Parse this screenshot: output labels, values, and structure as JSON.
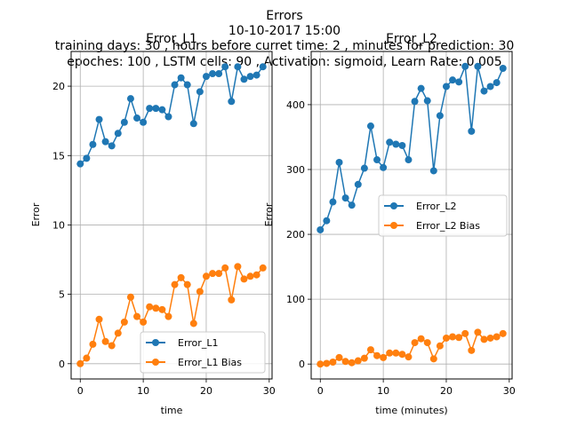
{
  "suptitle_lines": [
    "Errors",
    "10-10-2017 15:00",
    "training days: 30 , hours before curret time: 2 , minutes for prediction: 30",
    "epoches: 100 , LSTM cells: 90 , Activation: sigmoid, Learn Rate: 0.005"
  ],
  "chart_data": [
    {
      "type": "line",
      "title": "Error_L1",
      "xlabel": "time",
      "ylabel": "Error",
      "xlim": [
        -1.45,
        30.45
      ],
      "ylim": [
        -1.1,
        22.5
      ],
      "xticks": [
        0,
        10,
        20,
        30
      ],
      "yticks": [
        0,
        5,
        10,
        15,
        20
      ],
      "grid": true,
      "legend_position": "lower-right",
      "x": [
        0,
        1,
        2,
        3,
        4,
        5,
        6,
        7,
        8,
        9,
        10,
        11,
        12,
        13,
        14,
        15,
        16,
        17,
        18,
        19,
        20,
        21,
        22,
        23,
        24,
        25,
        26,
        27,
        28,
        29
      ],
      "series": [
        {
          "name": "Error_L1",
          "color": "#1f77b4",
          "values": [
            14.4,
            14.8,
            15.8,
            17.6,
            16.0,
            15.7,
            16.6,
            17.4,
            19.1,
            17.7,
            17.4,
            18.4,
            18.4,
            18.3,
            17.8,
            20.1,
            20.6,
            20.1,
            17.3,
            19.6,
            20.7,
            20.9,
            20.9,
            21.4,
            18.9,
            21.4,
            20.5,
            20.7,
            20.8,
            21.4
          ]
        },
        {
          "name": "Error_L1 Bias",
          "color": "#ff7f0e",
          "values": [
            0.0,
            0.4,
            1.4,
            3.2,
            1.6,
            1.3,
            2.2,
            3.0,
            4.8,
            3.4,
            3.0,
            4.1,
            4.0,
            3.9,
            3.4,
            5.7,
            6.2,
            5.7,
            2.9,
            5.2,
            6.3,
            6.5,
            6.5,
            6.9,
            4.6,
            7.0,
            6.1,
            6.3,
            6.4,
            6.9
          ]
        }
      ]
    },
    {
      "type": "line",
      "title": "Error_L2",
      "xlabel": "time (minutes)",
      "ylabel": "Error",
      "xlim": [
        -1.45,
        30.45
      ],
      "ylim": [
        -23,
        482
      ],
      "xticks": [
        0,
        10,
        20,
        30
      ],
      "yticks": [
        0,
        100,
        200,
        300,
        400
      ],
      "grid": true,
      "legend_position": "center-right",
      "x": [
        0,
        1,
        2,
        3,
        4,
        5,
        6,
        7,
        8,
        9,
        10,
        11,
        12,
        13,
        14,
        15,
        16,
        17,
        18,
        19,
        20,
        21,
        22,
        23,
        24,
        25,
        26,
        27,
        28,
        29
      ],
      "series": [
        {
          "name": "Error_L2",
          "color": "#1f77b4",
          "values": [
            207,
            221,
            250,
            311,
            256,
            245,
            277,
            302,
            367,
            315,
            303,
            342,
            339,
            337,
            315,
            405,
            425,
            406,
            298,
            383,
            428,
            438,
            435,
            459,
            359,
            459,
            421,
            428,
            434,
            456
          ]
        },
        {
          "name": "Error_L2 Bias",
          "color": "#ff7f0e",
          "values": [
            0,
            1,
            3,
            10,
            4,
            2,
            5,
            9,
            22,
            13,
            10,
            17,
            17,
            15,
            11,
            33,
            39,
            33,
            8,
            28,
            40,
            42,
            41,
            47,
            21,
            49,
            38,
            40,
            42,
            47
          ]
        }
      ]
    }
  ]
}
